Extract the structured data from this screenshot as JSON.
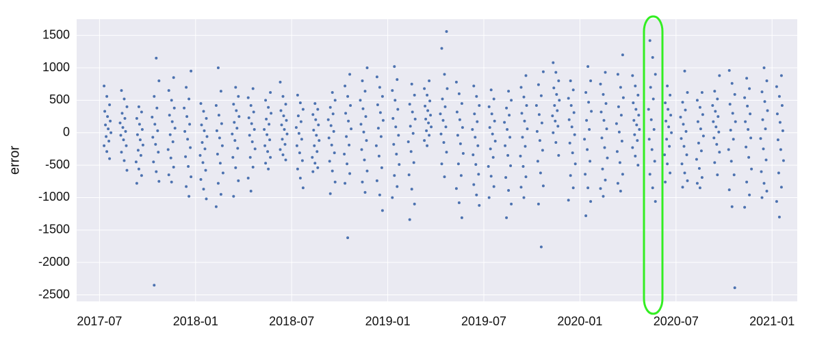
{
  "chart_data": {
    "type": "scatter",
    "ylabel": "error",
    "color": "#4c72b0",
    "grid": true,
    "xlim": [
      "2017-06",
      "2021-03"
    ],
    "xticks": [
      "2017-07",
      "2018-01",
      "2018-07",
      "2019-01",
      "2019-07",
      "2020-01",
      "2020-07",
      "2021-01"
    ],
    "ylim": [
      -2600,
      1750
    ],
    "yticks": [
      -2500,
      -2000,
      -1500,
      -1000,
      -500,
      0,
      500,
      1000,
      1500
    ],
    "categories": [
      "2017-07",
      "2017-08",
      "2017-09",
      "2017-10",
      "2017-11",
      "2017-12",
      "2018-01",
      "2018-02",
      "2018-03",
      "2018-04",
      "2018-05",
      "2018-06",
      "2018-07",
      "2018-08",
      "2018-09",
      "2018-10",
      "2018-11",
      "2018-12",
      "2019-01",
      "2019-02",
      "2019-03",
      "2019-04",
      "2019-05",
      "2019-06",
      "2019-07",
      "2019-08",
      "2019-09",
      "2019-10",
      "2019-11",
      "2019-12",
      "2020-01",
      "2020-02",
      "2020-03",
      "2020-04",
      "2020-05",
      "2020-06",
      "2020-07",
      "2020-08",
      "2020-09",
      "2020-10",
      "2020-11",
      "2020-12",
      "2021-01"
    ],
    "values": [
      [
        720,
        560,
        430,
        330,
        250,
        180,
        120,
        60,
        0,
        -60,
        -130,
        -200,
        -290,
        -400
      ],
      [
        650,
        520,
        400,
        300,
        220,
        150,
        80,
        20,
        -40,
        -110,
        -200,
        -300,
        -430,
        -580
      ],
      [
        400,
        320,
        220,
        130,
        50,
        -30,
        -110,
        -190,
        -270,
        -350,
        -450,
        -560,
        -660,
        -780
      ],
      [
        1150,
        800,
        560,
        380,
        240,
        130,
        30,
        -70,
        -180,
        -300,
        -450,
        -600,
        -750,
        -2350
      ],
      [
        850,
        650,
        500,
        380,
        270,
        170,
        70,
        -30,
        -140,
        -260,
        -390,
        -530,
        -650,
        -760
      ],
      [
        950,
        700,
        520,
        380,
        250,
        130,
        20,
        -100,
        -230,
        -370,
        -520,
        -680,
        -830,
        -980
      ],
      [
        450,
        330,
        220,
        120,
        30,
        -60,
        -150,
        -250,
        -350,
        -460,
        -580,
        -720,
        -870,
        -1020
      ],
      [
        1000,
        640,
        420,
        270,
        140,
        30,
        -80,
        -200,
        -330,
        -470,
        -620,
        -780,
        -950,
        -1140
      ],
      [
        700,
        560,
        440,
        340,
        250,
        160,
        70,
        -20,
        -120,
        -240,
        -380,
        -540,
        -740,
        -980
      ],
      [
        680,
        540,
        420,
        320,
        230,
        140,
        50,
        -40,
        -140,
        -250,
        -380,
        -530,
        -700,
        -900
      ],
      [
        620,
        500,
        390,
        300,
        210,
        130,
        50,
        -30,
        -110,
        -200,
        -290,
        -380,
        -470,
        -560
      ],
      [
        780,
        560,
        440,
        340,
        260,
        190,
        120,
        50,
        -20,
        -100,
        -180,
        -260,
        -340,
        -420
      ],
      [
        580,
        460,
        360,
        260,
        170,
        80,
        -10,
        -100,
        -200,
        -310,
        -430,
        -560,
        -700,
        -850
      ],
      [
        450,
        360,
        280,
        200,
        120,
        40,
        -40,
        -120,
        -200,
        -290,
        -380,
        -470,
        -540,
        -600
      ],
      [
        620,
        500,
        390,
        290,
        200,
        110,
        20,
        -80,
        -190,
        -310,
        -440,
        -590,
        -760,
        -940
      ],
      [
        900,
        720,
        560,
        420,
        300,
        180,
        60,
        -60,
        -190,
        -330,
        -480,
        -630,
        -780,
        -1620
      ],
      [
        1000,
        800,
        640,
        500,
        370,
        250,
        130,
        10,
        -120,
        -260,
        -420,
        -590,
        -760,
        -920
      ],
      [
        860,
        700,
        560,
        430,
        310,
        190,
        70,
        -60,
        -200,
        -360,
        -540,
        -740,
        -960,
        -1200
      ],
      [
        1020,
        820,
        650,
        500,
        360,
        220,
        90,
        -40,
        -180,
        -330,
        -490,
        -660,
        -830,
        -1000
      ],
      [
        750,
        580,
        440,
        320,
        210,
        100,
        -10,
        -140,
        -290,
        -460,
        -650,
        -870,
        -1100,
        -1340
      ],
      [
        800,
        680,
        580,
        490,
        410,
        340,
        270,
        210,
        150,
        90,
        30,
        -40,
        -120,
        -200
      ],
      [
        1560,
        1300,
        900,
        680,
        520,
        400,
        290,
        190,
        90,
        -20,
        -150,
        -300,
        -480,
        -680
      ],
      [
        780,
        600,
        450,
        320,
        200,
        80,
        -40,
        -170,
        -320,
        -480,
        -660,
        -860,
        -1080,
        -1310
      ],
      [
        720,
        560,
        420,
        290,
        170,
        50,
        -70,
        -200,
        -340,
        -490,
        -640,
        -800,
        -960,
        -1120
      ],
      [
        660,
        520,
        400,
        290,
        180,
        80,
        -20,
        -130,
        -250,
        -380,
        -520,
        -670,
        -830,
        -1000
      ],
      [
        640,
        500,
        380,
        270,
        160,
        50,
        -70,
        -200,
        -350,
        -510,
        -690,
        -890,
        -1100,
        -1310
      ],
      [
        880,
        700,
        550,
        420,
        300,
        180,
        60,
        -70,
        -210,
        -360,
        -520,
        -680,
        -840,
        -1000
      ],
      [
        940,
        740,
        570,
        420,
        280,
        150,
        20,
        -120,
        -270,
        -440,
        -620,
        -820,
        -1100,
        -1760
      ],
      [
        1080,
        930,
        800,
        690,
        590,
        500,
        420,
        340,
        260,
        180,
        100,
        0,
        -150,
        -350
      ],
      [
        800,
        660,
        530,
        420,
        310,
        200,
        90,
        -30,
        -160,
        -310,
        -480,
        -660,
        -850,
        -1040
      ],
      [
        1020,
        800,
        620,
        470,
        330,
        190,
        50,
        -100,
        -260,
        -440,
        -640,
        -850,
        -1060,
        -1280
      ],
      [
        930,
        750,
        590,
        450,
        320,
        190,
        60,
        -80,
        -230,
        -390,
        -560,
        -730,
        -860,
        -980
      ],
      [
        1200,
        900,
        700,
        540,
        400,
        270,
        140,
        10,
        -130,
        -290,
        -460,
        -640,
        -780,
        -900
      ],
      [
        880,
        720,
        580,
        460,
        360,
        270,
        190,
        120,
        50,
        -30,
        -120,
        -230,
        -360,
        -500
      ],
      [
        1420,
        1160,
        900,
        700,
        520,
        360,
        200,
        50,
        -100,
        -260,
        -440,
        -640,
        -850,
        -1060
      ],
      [
        720,
        580,
        460,
        360,
        270,
        180,
        90,
        0,
        -100,
        -210,
        -340,
        -480,
        -620,
        -760
      ],
      [
        950,
        620,
        470,
        350,
        240,
        130,
        20,
        -90,
        -210,
        -340,
        -480,
        -620,
        -740,
        -840
      ],
      [
        620,
        500,
        390,
        280,
        170,
        60,
        -50,
        -160,
        -280,
        -410,
        -550,
        -690,
        -780,
        -850
      ],
      [
        880,
        640,
        520,
        420,
        330,
        250,
        170,
        90,
        10,
        -80,
        -180,
        -300,
        -460,
        -650
      ],
      [
        960,
        760,
        590,
        440,
        300,
        170,
        40,
        -100,
        -260,
        -440,
        -650,
        -880,
        -1140,
        -2390
      ],
      [
        840,
        680,
        540,
        410,
        290,
        170,
        50,
        -80,
        -220,
        -380,
        -560,
        -760,
        -960,
        -1150
      ],
      [
        1000,
        800,
        630,
        480,
        340,
        200,
        60,
        -90,
        -250,
        -420,
        -600,
        -780,
        -900,
        -1000
      ],
      [
        880,
        710,
        560,
        420,
        290,
        160,
        30,
        -110,
        -260,
        -430,
        -620,
        -840,
        -1060,
        -1300
      ]
    ]
  }
}
